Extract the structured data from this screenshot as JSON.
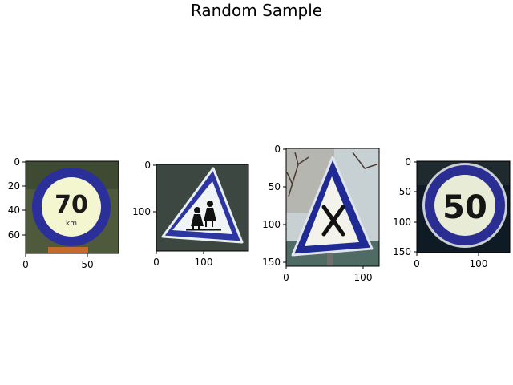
{
  "title": "Random Sample",
  "panels": [
    {
      "name": "speed-limit-70",
      "sign_text": "70",
      "sign_subtext": "km",
      "xticks": [
        "0",
        "50"
      ],
      "yticks": [
        "0",
        "20",
        "40",
        "60"
      ],
      "colors": {
        "bg": "#4f5a3c",
        "ring": "#2b2f9a",
        "inner": "#f4f6cf"
      }
    },
    {
      "name": "school-crossing",
      "xticks": [
        "0",
        "100"
      ],
      "yticks": [
        "0",
        "100"
      ],
      "colors": {
        "bg": "#3b4740",
        "border": "#2d36a0",
        "inner": "#f1f4f4"
      }
    },
    {
      "name": "crossroads-warning",
      "xticks": [
        "0",
        "100"
      ],
      "yticks": [
        "0",
        "50",
        "100",
        "150"
      ],
      "colors": {
        "bg": "#b9c3c6",
        "border": "#1f2a95",
        "inner": "#f3f3eb"
      }
    },
    {
      "name": "speed-limit-50",
      "sign_text": "50",
      "xticks": [
        "0",
        "100"
      ],
      "yticks": [
        "0",
        "50",
        "100",
        "150"
      ],
      "colors": {
        "bg": "#0f1b24",
        "ring": "#2a2e92",
        "inner": "#e8ecd6"
      }
    }
  ]
}
